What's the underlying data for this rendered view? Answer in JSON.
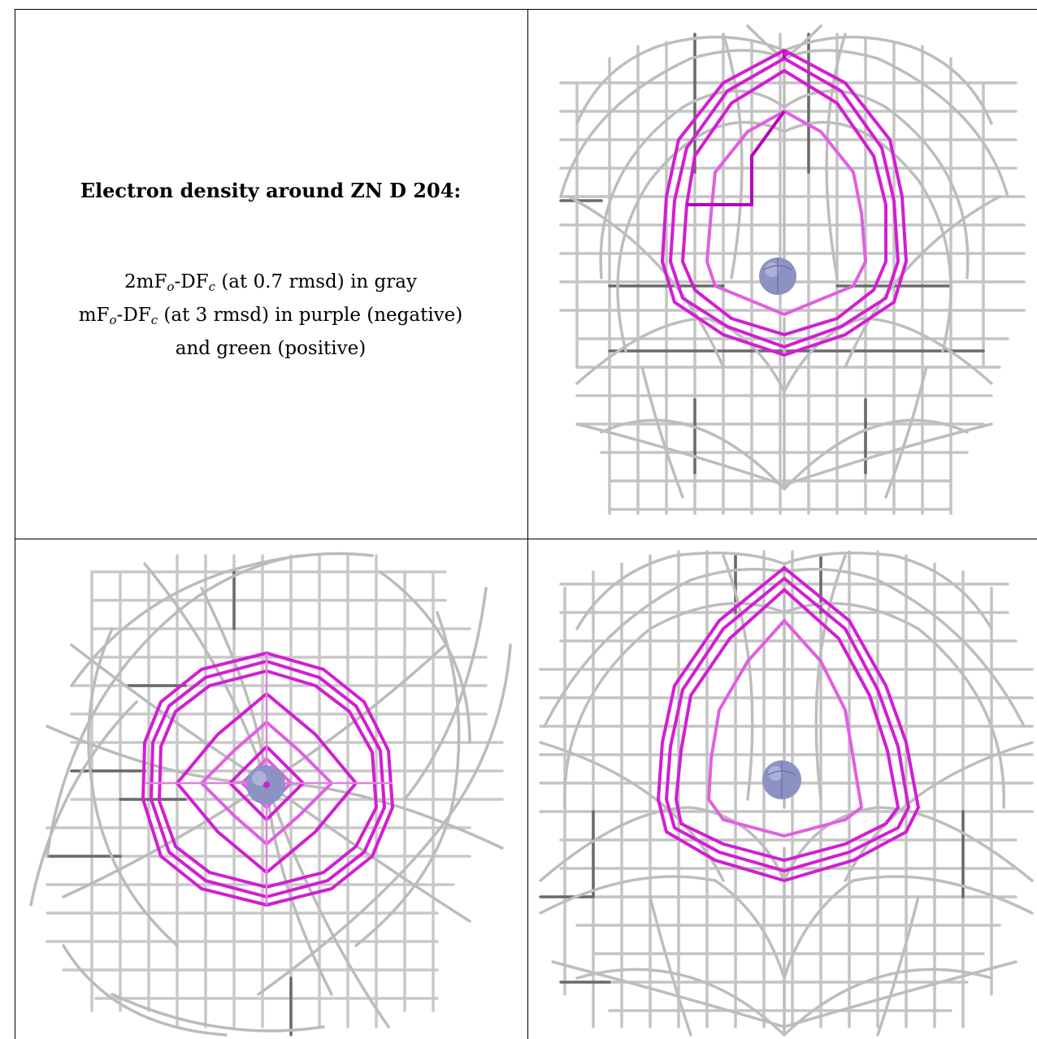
{
  "caption": {
    "title": "Electron density around ZN D 204:",
    "line1": {
      "a": "2mF",
      "sub1": "o",
      "b": "-DF",
      "sub2": "c",
      "c": " (at 0.7 rmsd) in gray"
    },
    "line2": {
      "a": "mF",
      "sub1": "o",
      "b": "-DF",
      "sub2": "c",
      "c": " (at 3 rmsd) in purple (negative)"
    },
    "line3": "and green (positive)"
  },
  "colors": {
    "mesh_gray": "#b8b8b8",
    "mesh_dark": "#555555",
    "diff_negative": "#d21ed2",
    "atom": "#8c92c4"
  },
  "views": [
    {
      "name": "view-front",
      "atom": "ZN D 204"
    },
    {
      "name": "view-axial",
      "atom": "ZN D 204"
    },
    {
      "name": "view-side",
      "atom": "ZN D 204"
    }
  ]
}
